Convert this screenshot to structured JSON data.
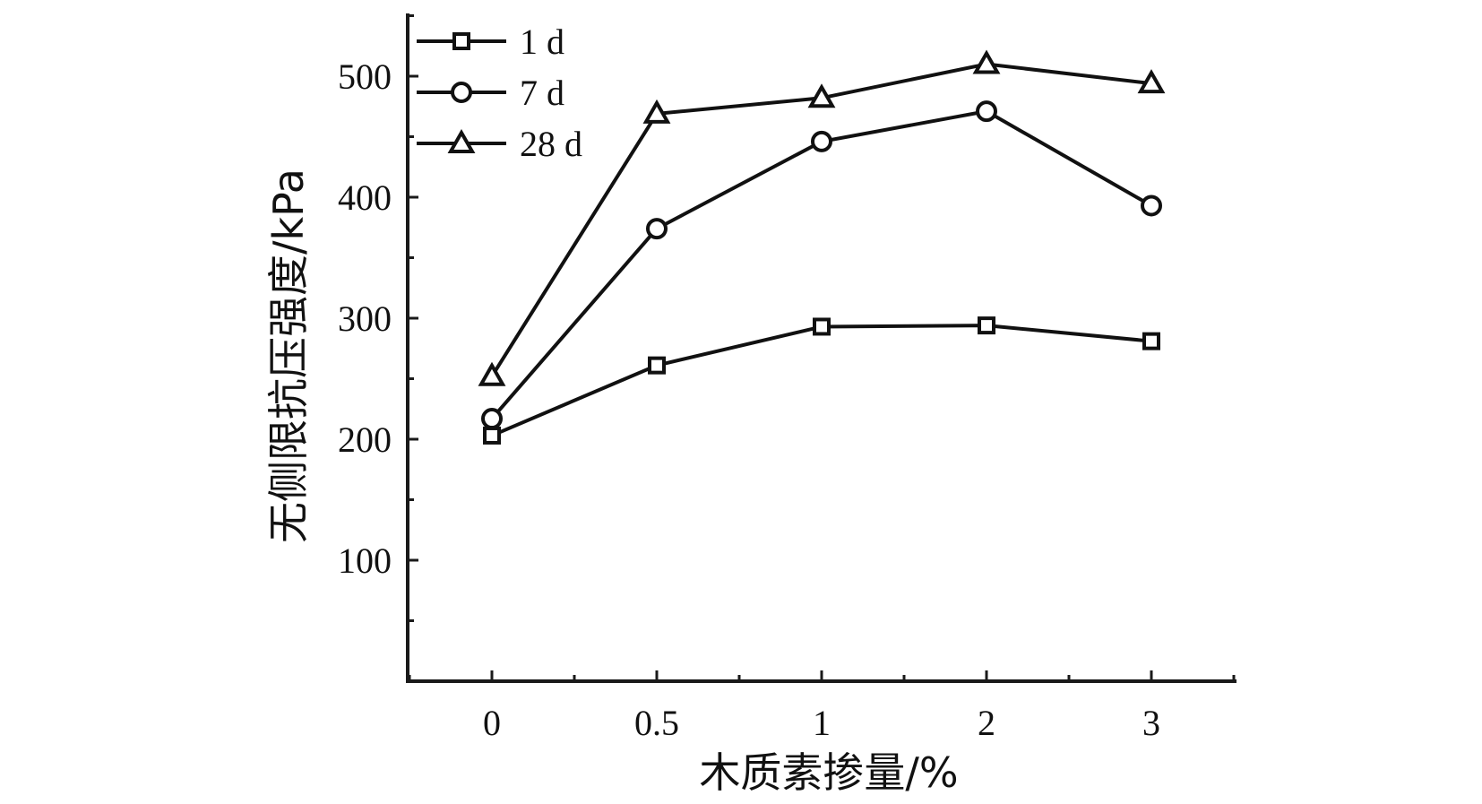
{
  "chart_data": {
    "type": "line",
    "xlabel": "木质素掺量/%",
    "ylabel": "无侧限抗压强度/kPa",
    "categories": [
      "0",
      "0.5",
      "1",
      "2",
      "3"
    ],
    "ylim": [
      0,
      550
    ],
    "yticks": [
      100,
      200,
      300,
      400,
      500
    ],
    "legend_position": "top-left",
    "grid": false,
    "series": [
      {
        "name": "1 d",
        "marker": "square",
        "values": [
          203,
          261,
          293,
          294,
          281
        ]
      },
      {
        "name": "7 d",
        "marker": "circle",
        "values": [
          217,
          374,
          446,
          471,
          393
        ]
      },
      {
        "name": "28 d",
        "marker": "triangle",
        "values": [
          252,
          469,
          482,
          510,
          494
        ]
      }
    ]
  }
}
